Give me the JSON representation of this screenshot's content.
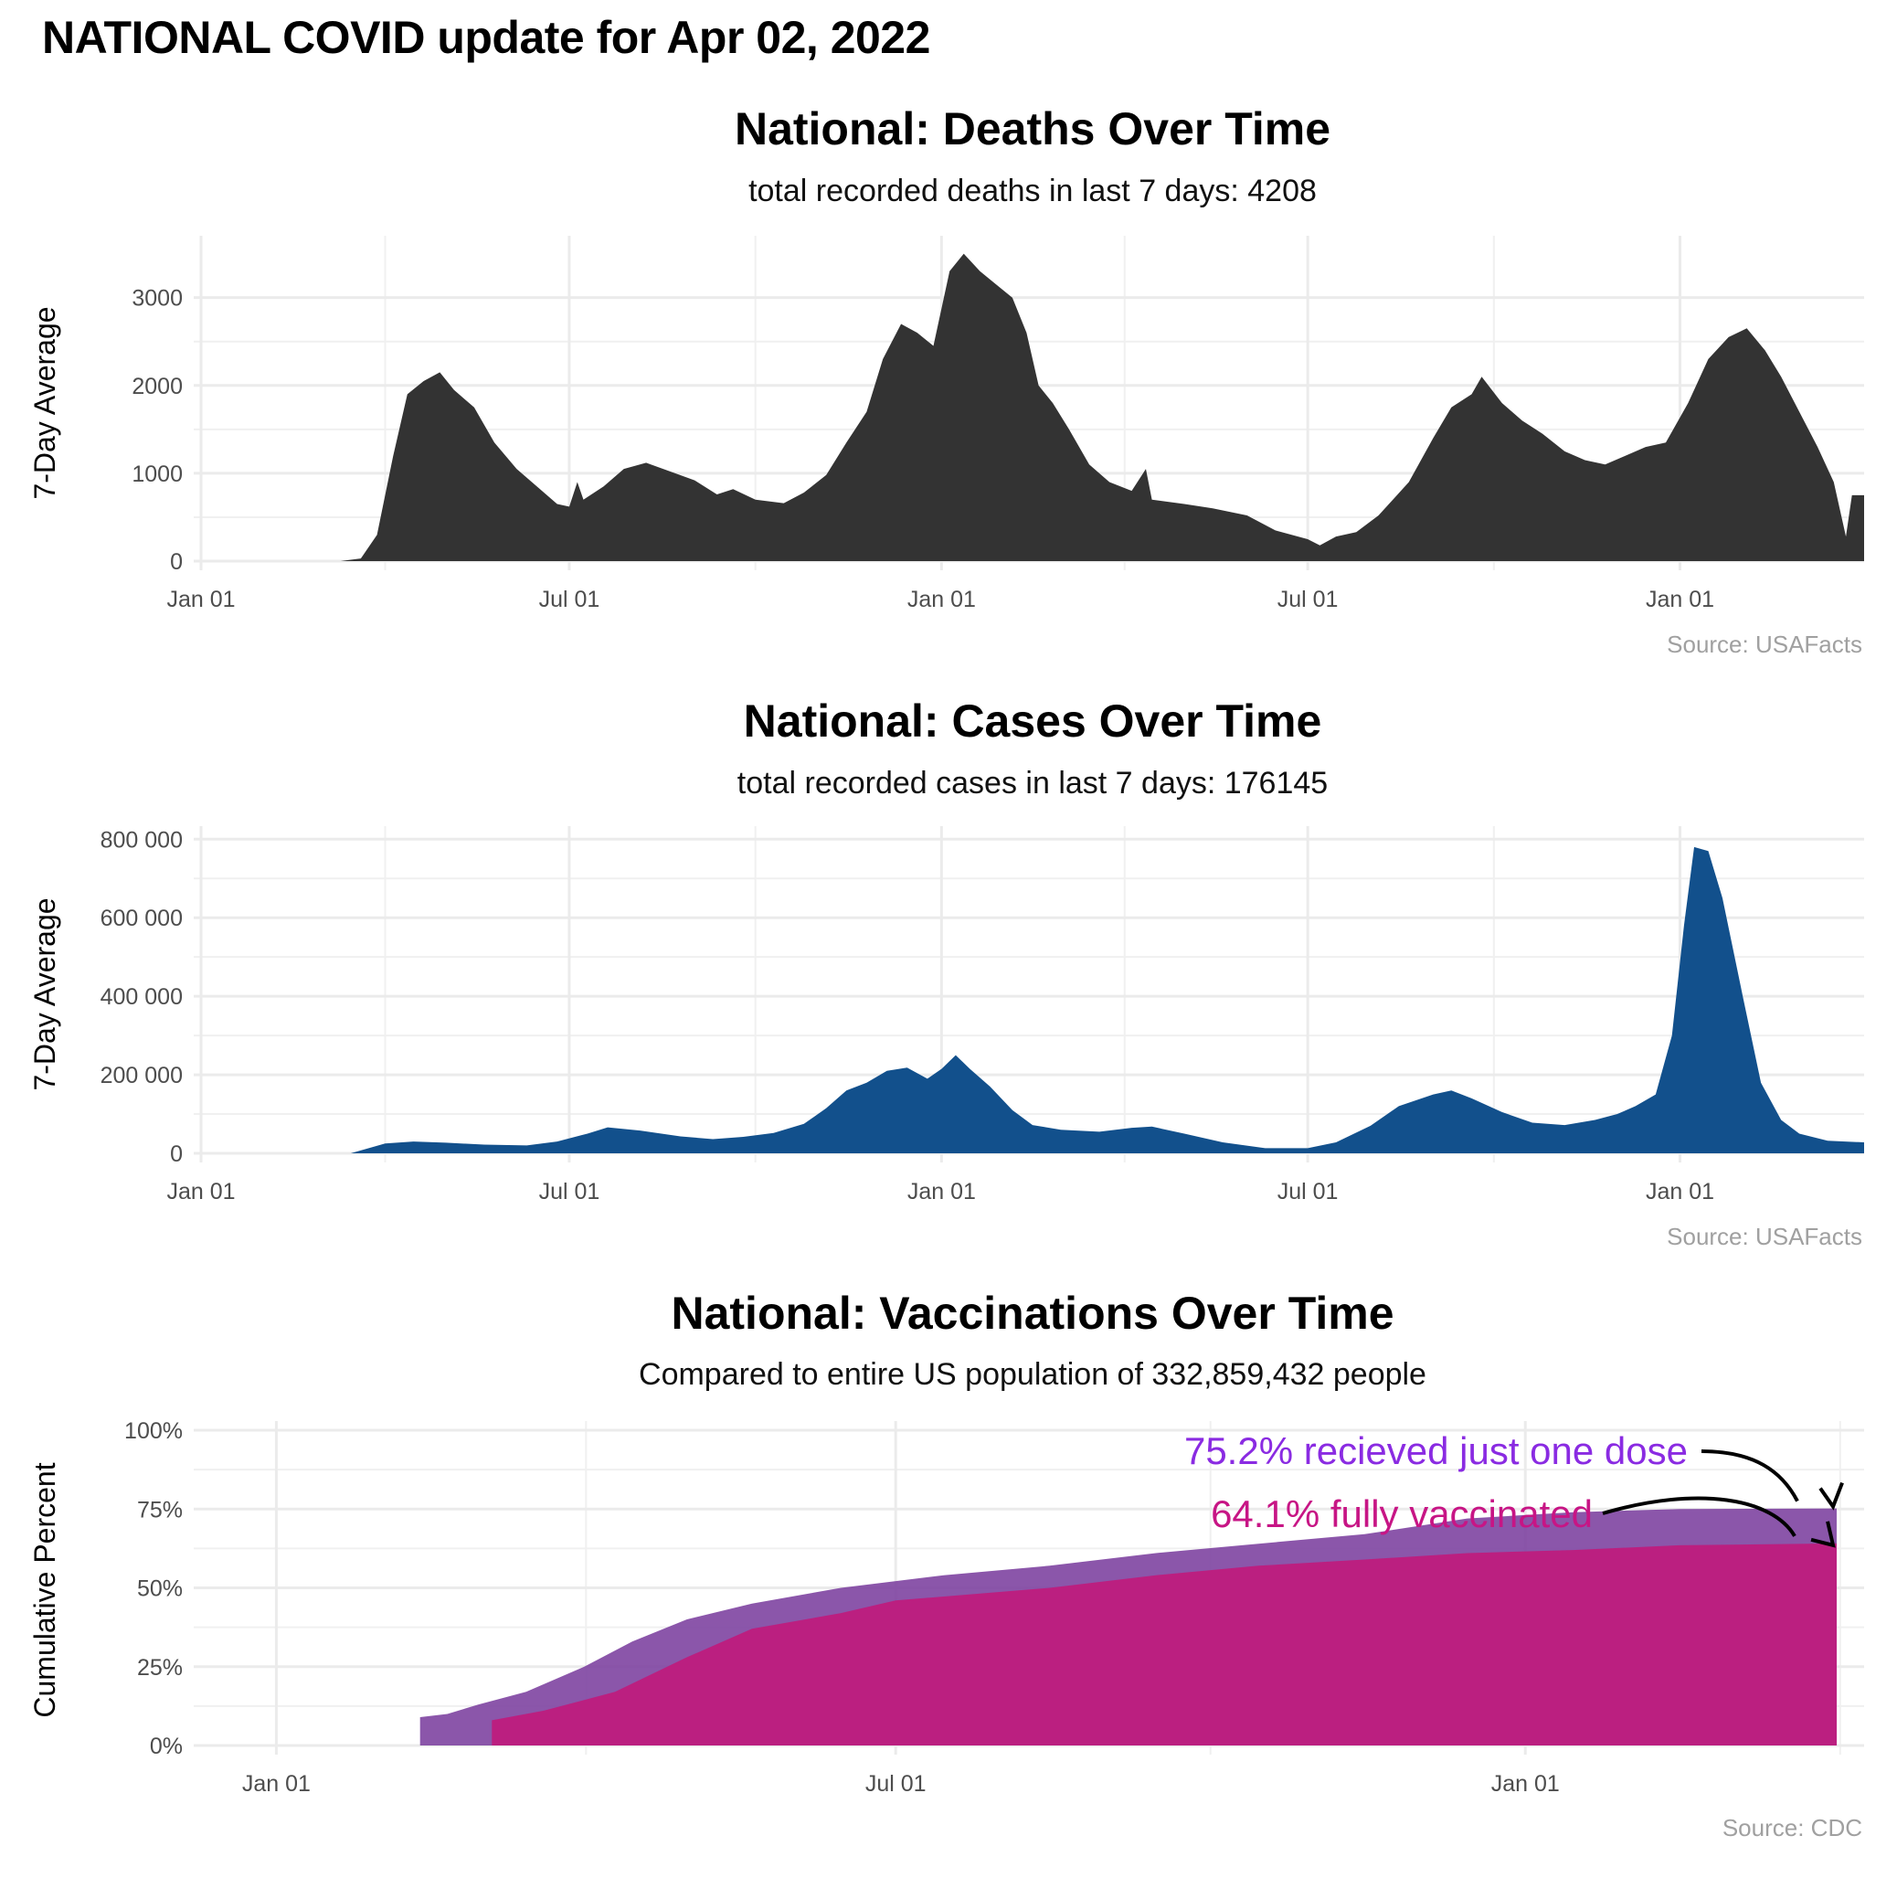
{
  "page_title": "NATIONAL COVID update for Apr 02, 2022",
  "panels": {
    "deaths": {
      "title": "National: Deaths Over Time",
      "subtitle": "total recorded deaths in last 7 days: 4208",
      "source": "Source: USAFacts"
    },
    "cases": {
      "title": "National: Cases Over Time",
      "subtitle": "total recorded cases in last 7 days: 176145",
      "source": "Source: USAFacts"
    },
    "vaccinations": {
      "title": "National: Vaccinations Over Time",
      "subtitle": "Compared to entire US population of 332,859,432 people",
      "source": "Source: CDC",
      "annotation_one_dose": "75.2% recieved just one dose",
      "annotation_fully": "64.1% fully vaccinated"
    }
  },
  "chart_data": [
    {
      "id": "deaths",
      "type": "area",
      "ylabel": "7-Day Average",
      "xlabel": "",
      "xlim": [
        "2020-01-01",
        "2022-04-02"
      ],
      "ylim": [
        0,
        3600
      ],
      "x_ticks": [
        {
          "date": "2020-01-01",
          "label": "Jan 01"
        },
        {
          "date": "2020-07-01",
          "label": "Jul 01"
        },
        {
          "date": "2021-01-01",
          "label": "Jan 01"
        },
        {
          "date": "2021-07-01",
          "label": "Jul 01"
        },
        {
          "date": "2022-01-01",
          "label": "Jan 01"
        }
      ],
      "y_ticks": [
        {
          "value": 0,
          "label": "0"
        },
        {
          "value": 1000,
          "label": "1000"
        },
        {
          "value": 2000,
          "label": "2000"
        },
        {
          "value": 3000,
          "label": "3000"
        }
      ],
      "grid": true,
      "color": "#333333",
      "series": [
        {
          "values": [
            [
              "2020-03-10",
              0
            ],
            [
              "2020-03-20",
              30
            ],
            [
              "2020-03-28",
              300
            ],
            [
              "2020-04-05",
              1200
            ],
            [
              "2020-04-12",
              1900
            ],
            [
              "2020-04-20",
              2050
            ],
            [
              "2020-04-28",
              2150
            ],
            [
              "2020-05-05",
              1950
            ],
            [
              "2020-05-15",
              1750
            ],
            [
              "2020-05-25",
              1350
            ],
            [
              "2020-06-05",
              1050
            ],
            [
              "2020-06-15",
              850
            ],
            [
              "2020-06-25",
              650
            ],
            [
              "2020-07-01",
              620
            ],
            [
              "2020-07-05",
              900
            ],
            [
              "2020-07-08",
              700
            ],
            [
              "2020-07-18",
              850
            ],
            [
              "2020-07-28",
              1050
            ],
            [
              "2020-08-08",
              1120
            ],
            [
              "2020-08-20",
              1020
            ],
            [
              "2020-09-01",
              920
            ],
            [
              "2020-09-12",
              760
            ],
            [
              "2020-09-20",
              820
            ],
            [
              "2020-10-01",
              700
            ],
            [
              "2020-10-15",
              660
            ],
            [
              "2020-10-25",
              780
            ],
            [
              "2020-11-05",
              980
            ],
            [
              "2020-11-15",
              1350
            ],
            [
              "2020-11-25",
              1700
            ],
            [
              "2020-12-03",
              2300
            ],
            [
              "2020-12-12",
              2700
            ],
            [
              "2020-12-20",
              2600
            ],
            [
              "2020-12-28",
              2450
            ],
            [
              "2021-01-05",
              3300
            ],
            [
              "2021-01-12",
              3500
            ],
            [
              "2021-01-20",
              3300
            ],
            [
              "2021-01-28",
              3150
            ],
            [
              "2021-02-05",
              3000
            ],
            [
              "2021-02-12",
              2600
            ],
            [
              "2021-02-18",
              2000
            ],
            [
              "2021-02-25",
              1800
            ],
            [
              "2021-03-05",
              1500
            ],
            [
              "2021-03-15",
              1100
            ],
            [
              "2021-03-25",
              900
            ],
            [
              "2021-04-05",
              800
            ],
            [
              "2021-04-12",
              1050
            ],
            [
              "2021-04-15",
              700
            ],
            [
              "2021-05-01",
              650
            ],
            [
              "2021-05-15",
              600
            ],
            [
              "2021-06-01",
              520
            ],
            [
              "2021-06-15",
              350
            ],
            [
              "2021-07-01",
              250
            ],
            [
              "2021-07-07",
              180
            ],
            [
              "2021-07-15",
              280
            ],
            [
              "2021-07-25",
              330
            ],
            [
              "2021-08-05",
              520
            ],
            [
              "2021-08-20",
              900
            ],
            [
              "2021-09-01",
              1400
            ],
            [
              "2021-09-10",
              1750
            ],
            [
              "2021-09-20",
              1900
            ],
            [
              "2021-09-25",
              2100
            ],
            [
              "2021-10-05",
              1800
            ],
            [
              "2021-10-15",
              1600
            ],
            [
              "2021-10-25",
              1450
            ],
            [
              "2021-11-05",
              1250
            ],
            [
              "2021-11-15",
              1150
            ],
            [
              "2021-11-25",
              1100
            ],
            [
              "2021-12-05",
              1200
            ],
            [
              "2021-12-15",
              1300
            ],
            [
              "2021-12-25",
              1350
            ],
            [
              "2022-01-05",
              1800
            ],
            [
              "2022-01-15",
              2300
            ],
            [
              "2022-01-25",
              2550
            ],
            [
              "2022-02-03",
              2650
            ],
            [
              "2022-02-12",
              2400
            ],
            [
              "2022-02-20",
              2100
            ],
            [
              "2022-03-01",
              1700
            ],
            [
              "2022-03-10",
              1300
            ],
            [
              "2022-03-18",
              900
            ],
            [
              "2022-03-24",
              280
            ],
            [
              "2022-03-27",
              750
            ],
            [
              "2022-04-02",
              750
            ]
          ]
        }
      ]
    },
    {
      "id": "cases",
      "type": "area",
      "ylabel": "7-Day Average",
      "xlabel": "",
      "xlim": [
        "2020-01-01",
        "2022-04-02"
      ],
      "ylim": [
        0,
        810000
      ],
      "x_ticks": [
        {
          "date": "2020-01-01",
          "label": "Jan 01"
        },
        {
          "date": "2020-07-01",
          "label": "Jul 01"
        },
        {
          "date": "2021-01-01",
          "label": "Jan 01"
        },
        {
          "date": "2021-07-01",
          "label": "Jul 01"
        },
        {
          "date": "2022-01-01",
          "label": "Jan 01"
        }
      ],
      "y_ticks": [
        {
          "value": 0,
          "label": "0"
        },
        {
          "value": 200000,
          "label": "200 000"
        },
        {
          "value": 400000,
          "label": "400 000"
        },
        {
          "value": 600000,
          "label": "600 000"
        },
        {
          "value": 800000,
          "label": "800 000"
        }
      ],
      "grid": true,
      "color": "#12508C",
      "series": [
        {
          "values": [
            [
              "2020-03-15",
              0
            ],
            [
              "2020-04-01",
              25000
            ],
            [
              "2020-04-15",
              30000
            ],
            [
              "2020-05-01",
              27000
            ],
            [
              "2020-05-20",
              22000
            ],
            [
              "2020-06-10",
              20000
            ],
            [
              "2020-06-25",
              30000
            ],
            [
              "2020-07-10",
              50000
            ],
            [
              "2020-07-20",
              66000
            ],
            [
              "2020-08-05",
              58000
            ],
            [
              "2020-08-25",
              43000
            ],
            [
              "2020-09-10",
              36000
            ],
            [
              "2020-09-25",
              42000
            ],
            [
              "2020-10-10",
              52000
            ],
            [
              "2020-10-25",
              75000
            ],
            [
              "2020-11-05",
              115000
            ],
            [
              "2020-11-15",
              160000
            ],
            [
              "2020-11-25",
              180000
            ],
            [
              "2020-12-05",
              210000
            ],
            [
              "2020-12-15",
              218000
            ],
            [
              "2020-12-25",
              190000
            ],
            [
              "2021-01-01",
              215000
            ],
            [
              "2021-01-08",
              250000
            ],
            [
              "2021-01-15",
              215000
            ],
            [
              "2021-01-25",
              170000
            ],
            [
              "2021-02-05",
              110000
            ],
            [
              "2021-02-15",
              72000
            ],
            [
              "2021-03-01",
              60000
            ],
            [
              "2021-03-20",
              55000
            ],
            [
              "2021-04-05",
              65000
            ],
            [
              "2021-04-15",
              68000
            ],
            [
              "2021-05-01",
              50000
            ],
            [
              "2021-05-20",
              28000
            ],
            [
              "2021-06-10",
              13000
            ],
            [
              "2021-07-01",
              13000
            ],
            [
              "2021-07-15",
              28000
            ],
            [
              "2021-08-01",
              70000
            ],
            [
              "2021-08-15",
              120000
            ],
            [
              "2021-09-01",
              150000
            ],
            [
              "2021-09-10",
              160000
            ],
            [
              "2021-09-20",
              140000
            ],
            [
              "2021-10-05",
              105000
            ],
            [
              "2021-10-20",
              78000
            ],
            [
              "2021-11-05",
              72000
            ],
            [
              "2021-11-20",
              85000
            ],
            [
              "2021-12-01",
              100000
            ],
            [
              "2021-12-10",
              120000
            ],
            [
              "2021-12-20",
              150000
            ],
            [
              "2021-12-28",
              300000
            ],
            [
              "2022-01-03",
              580000
            ],
            [
              "2022-01-08",
              780000
            ],
            [
              "2022-01-15",
              770000
            ],
            [
              "2022-01-22",
              650000
            ],
            [
              "2022-02-01",
              400000
            ],
            [
              "2022-02-10",
              180000
            ],
            [
              "2022-02-20",
              85000
            ],
            [
              "2022-03-01",
              50000
            ],
            [
              "2022-03-15",
              32000
            ],
            [
              "2022-04-02",
              28000
            ]
          ]
        }
      ]
    },
    {
      "id": "vaccinations",
      "type": "area",
      "ylabel": "Cumulative Percent",
      "xlabel": "",
      "xlim": [
        "2020-12-10",
        "2022-04-10"
      ],
      "ylim": [
        0,
        100
      ],
      "x_ticks": [
        {
          "date": "2021-01-01",
          "label": "Jan 01"
        },
        {
          "date": "2021-07-01",
          "label": "Jul 01"
        },
        {
          "date": "2022-01-01",
          "label": "Jan 01"
        }
      ],
      "y_ticks": [
        {
          "value": 0,
          "label": "0%"
        },
        {
          "value": 25,
          "label": "25%"
        },
        {
          "value": 50,
          "label": "50%"
        },
        {
          "value": 75,
          "label": "75%"
        },
        {
          "value": 100,
          "label": "100%"
        }
      ],
      "grid": true,
      "series": [
        {
          "name": "75.2% recieved just one dose",
          "color": "#7B3F9E",
          "values": [
            [
              "2021-02-12",
              0
            ],
            [
              "2021-02-12",
              9
            ],
            [
              "2021-02-20",
              10
            ],
            [
              "2021-03-01",
              13
            ],
            [
              "2021-03-15",
              17
            ],
            [
              "2021-04-01",
              25
            ],
            [
              "2021-04-15",
              33
            ],
            [
              "2021-05-01",
              40
            ],
            [
              "2021-05-20",
              45
            ],
            [
              "2021-06-15",
              50
            ],
            [
              "2021-07-15",
              54
            ],
            [
              "2021-08-15",
              57
            ],
            [
              "2021-09-15",
              61
            ],
            [
              "2021-10-15",
              64
            ],
            [
              "2021-11-15",
              67
            ],
            [
              "2021-12-15",
              72
            ],
            [
              "2022-01-15",
              74
            ],
            [
              "2022-02-15",
              75
            ],
            [
              "2022-04-02",
              75.2
            ]
          ]
        },
        {
          "name": "64.1% fully vaccinated",
          "color": "#C2187A",
          "values": [
            [
              "2021-03-05",
              0
            ],
            [
              "2021-03-05",
              8
            ],
            [
              "2021-03-20",
              11
            ],
            [
              "2021-04-10",
              17
            ],
            [
              "2021-05-01",
              28
            ],
            [
              "2021-05-20",
              37
            ],
            [
              "2021-06-15",
              42
            ],
            [
              "2021-07-01",
              46
            ],
            [
              "2021-08-15",
              50
            ],
            [
              "2021-09-15",
              54
            ],
            [
              "2021-10-15",
              57
            ],
            [
              "2021-11-15",
              59
            ],
            [
              "2021-12-15",
              61
            ],
            [
              "2022-01-15",
              62
            ],
            [
              "2022-02-15",
              63.5
            ],
            [
              "2022-04-02",
              64.1
            ]
          ]
        }
      ],
      "annotations": [
        {
          "text": "75.2% recieved just one dose",
          "color": "#8A2BE2"
        },
        {
          "text": "64.1% fully vaccinated",
          "color": "#C71585"
        }
      ]
    }
  ]
}
